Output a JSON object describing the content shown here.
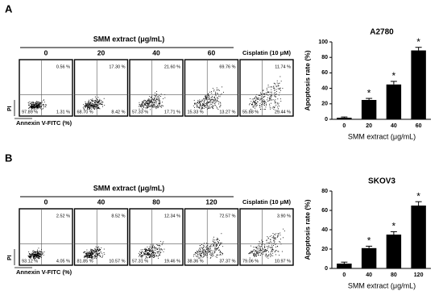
{
  "flow_panels": [
    {
      "label": "A",
      "header": "SMM extract (μg/mL)",
      "y_label": "PI",
      "x_label": "Annexin V-FITC (%)",
      "plots": [
        {
          "title": "0",
          "upper_right": "0.56 %",
          "lower_left": "97.89 %",
          "lower_right": "1.31 %"
        },
        {
          "title": "20",
          "upper_right": "17.30 %",
          "lower_left": "68.70 %",
          "lower_right": "8.42 %"
        },
        {
          "title": "40",
          "upper_right": "21.60 %",
          "lower_left": "57.33 %",
          "lower_right": "17.71 %"
        },
        {
          "title": "60",
          "upper_right": "69.76 %",
          "lower_left": "15.33 %",
          "lower_right": "13.27 %"
        },
        {
          "title": "Cisplatin (10 μM)",
          "upper_right": "11.74 %",
          "lower_left": "55.88 %",
          "lower_right": "29.44 %"
        }
      ]
    },
    {
      "label": "B",
      "header": "SMM extract (μg/mL)",
      "y_label": "PI",
      "x_label": "Annexin V-FITC (%)",
      "plots": [
        {
          "title": "0",
          "upper_right": "2.52 %",
          "lower_left": "93.12 %",
          "lower_right": "4.05 %"
        },
        {
          "title": "40",
          "upper_right": "8.52 %",
          "lower_left": "81.85 %",
          "lower_right": "10.57 %"
        },
        {
          "title": "80",
          "upper_right": "12.34 %",
          "lower_left": "57.31 %",
          "lower_right": "19.46 %"
        },
        {
          "title": "120",
          "upper_right": "72.57 %",
          "lower_left": "38.36 %",
          "lower_right": "37.37 %"
        },
        {
          "title": "Cisplatin (10 μM)",
          "upper_right": "3.90 %",
          "lower_left": "79.06 %",
          "lower_right": "10.97 %"
        }
      ]
    }
  ],
  "chart_data": [
    {
      "type": "bar",
      "title": "A2780",
      "y_label": "Apoptosis rate (%)",
      "x_label": "SMM extract (μg/mL)",
      "categories": [
        "0",
        "20",
        "40",
        "60"
      ],
      "values": [
        2,
        25,
        45,
        89
      ],
      "errors": [
        1,
        2,
        4,
        4
      ],
      "significant": [
        false,
        true,
        true,
        true
      ],
      "significance_mark": "*",
      "color": "#000000",
      "ylim": [
        0,
        100
      ],
      "yticks": [
        0,
        20,
        40,
        60,
        80,
        100
      ]
    },
    {
      "type": "bar",
      "title": "SKOV3",
      "y_label": "Apoptosis rate (%)",
      "x_label": "SMM extract (μg/mL)",
      "categories": [
        "0",
        "40",
        "80",
        "120"
      ],
      "values": [
        5,
        21,
        35,
        65
      ],
      "errors": [
        1.5,
        2,
        3,
        4
      ],
      "significant": [
        false,
        true,
        true,
        true
      ],
      "significance_mark": "*",
      "color": "#000000",
      "ylim": [
        0,
        80
      ],
      "yticks": [
        0,
        20,
        40,
        60,
        80
      ]
    }
  ]
}
